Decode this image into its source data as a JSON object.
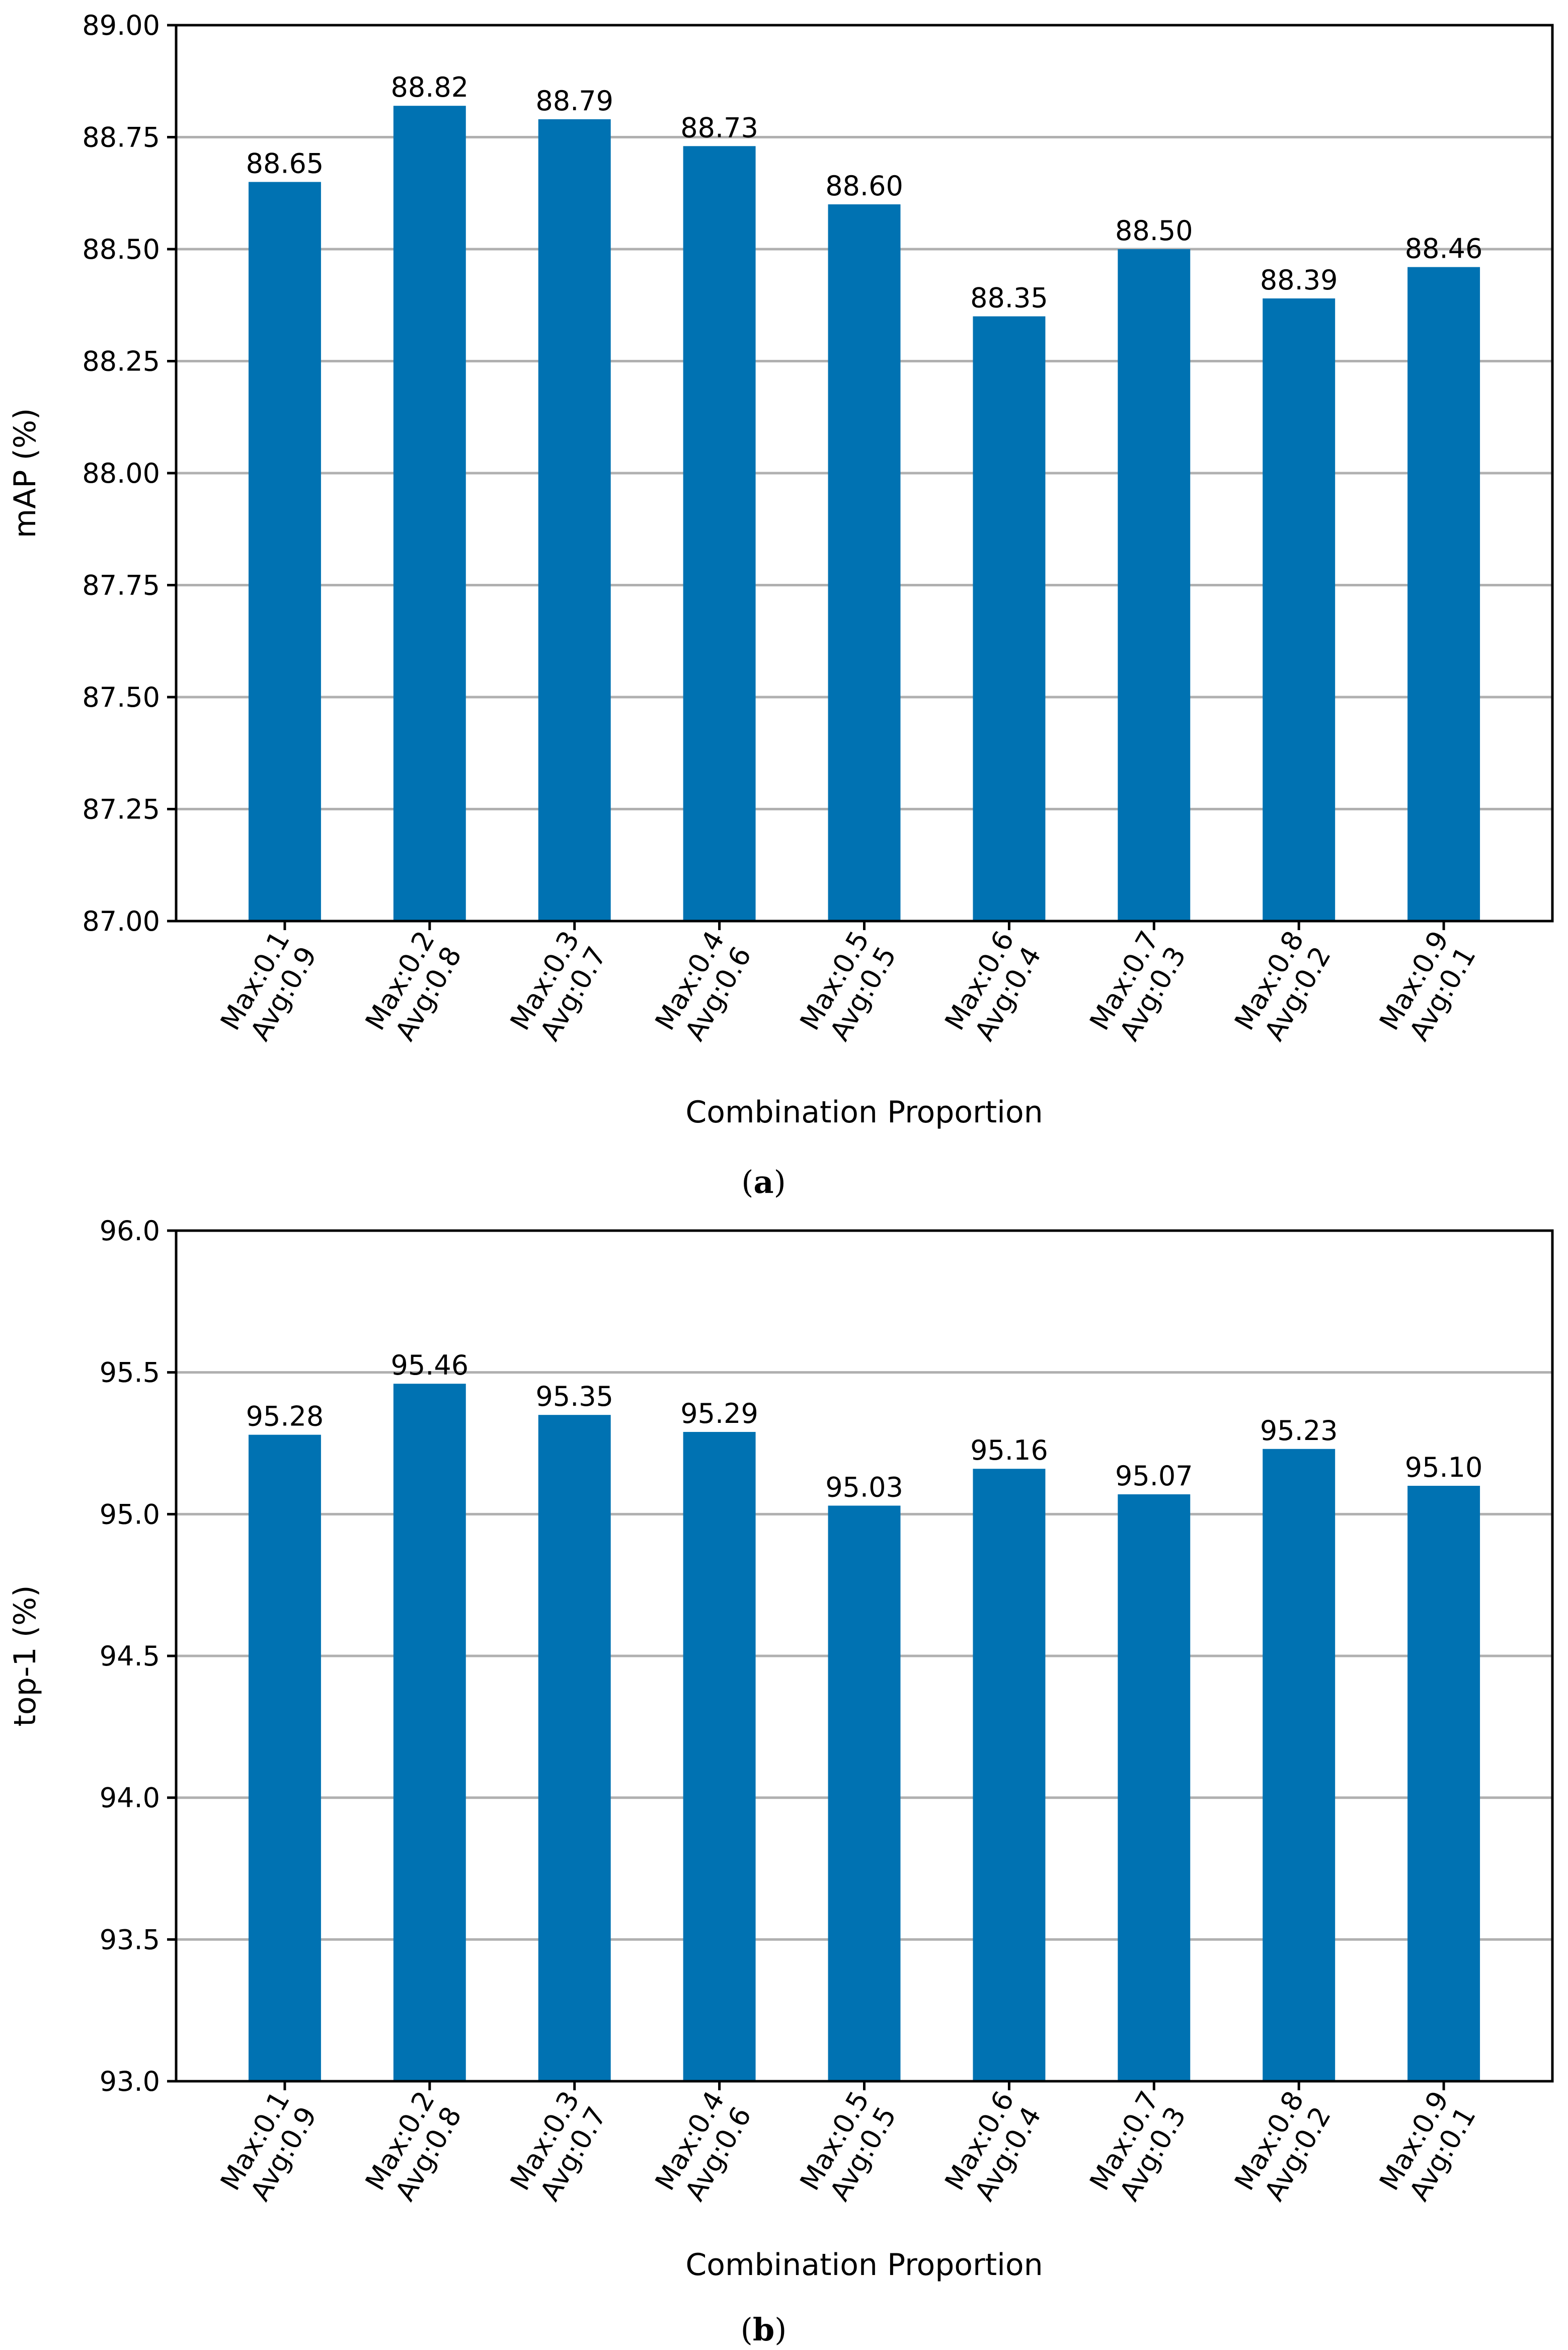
{
  "chart_data": [
    {
      "type": "bar",
      "title": "",
      "caption_letter": "a",
      "xlabel": "Combination Proportion",
      "ylabel": "mAP (%)",
      "ylim": [
        87.0,
        89.0
      ],
      "yticks": [
        "87.00",
        "87.25",
        "87.50",
        "87.75",
        "88.00",
        "88.25",
        "88.50",
        "88.75",
        "89.00"
      ],
      "grid": "horizontal",
      "categories": [
        [
          "Max:0.1",
          "Avg:0.9"
        ],
        [
          "Max:0.2",
          "Avg:0.8"
        ],
        [
          "Max:0.3",
          "Avg:0.7"
        ],
        [
          "Max:0.4",
          "Avg:0.6"
        ],
        [
          "Max:0.5",
          "Avg:0.5"
        ],
        [
          "Max:0.6",
          "Avg:0.4"
        ],
        [
          "Max:0.7",
          "Avg:0.3"
        ],
        [
          "Max:0.8",
          "Avg:0.2"
        ],
        [
          "Max:0.9",
          "Avg:0.1"
        ]
      ],
      "values": [
        88.65,
        88.82,
        88.79,
        88.73,
        88.6,
        88.35,
        88.5,
        88.39,
        88.46
      ],
      "value_labels": [
        "88.65",
        "88.82",
        "88.79",
        "88.73",
        "88.60",
        "88.35",
        "88.50",
        "88.39",
        "88.46"
      ],
      "bar_color": "#0072b2"
    },
    {
      "type": "bar",
      "title": "",
      "caption_letter": "b",
      "xlabel": "Combination Proportion",
      "ylabel": "top-1 (%)",
      "ylim": [
        93.0,
        96.0
      ],
      "yticks": [
        "93.0",
        "93.5",
        "94.0",
        "94.5",
        "95.0",
        "95.5",
        "96.0"
      ],
      "grid": "horizontal",
      "categories": [
        [
          "Max:0.1",
          "Avg:0.9"
        ],
        [
          "Max:0.2",
          "Avg:0.8"
        ],
        [
          "Max:0.3",
          "Avg:0.7"
        ],
        [
          "Max:0.4",
          "Avg:0.6"
        ],
        [
          "Max:0.5",
          "Avg:0.5"
        ],
        [
          "Max:0.6",
          "Avg:0.4"
        ],
        [
          "Max:0.7",
          "Avg:0.3"
        ],
        [
          "Max:0.8",
          "Avg:0.2"
        ],
        [
          "Max:0.9",
          "Avg:0.1"
        ]
      ],
      "values": [
        95.28,
        95.46,
        95.35,
        95.29,
        95.03,
        95.16,
        95.07,
        95.23,
        95.1
      ],
      "value_labels": [
        "95.28",
        "95.46",
        "95.35",
        "95.29",
        "95.03",
        "95.16",
        "95.07",
        "95.23",
        "95.10"
      ],
      "bar_color": "#0072b2"
    }
  ],
  "colors": {
    "grid": "#b0b0b0",
    "axis": "#000000"
  }
}
